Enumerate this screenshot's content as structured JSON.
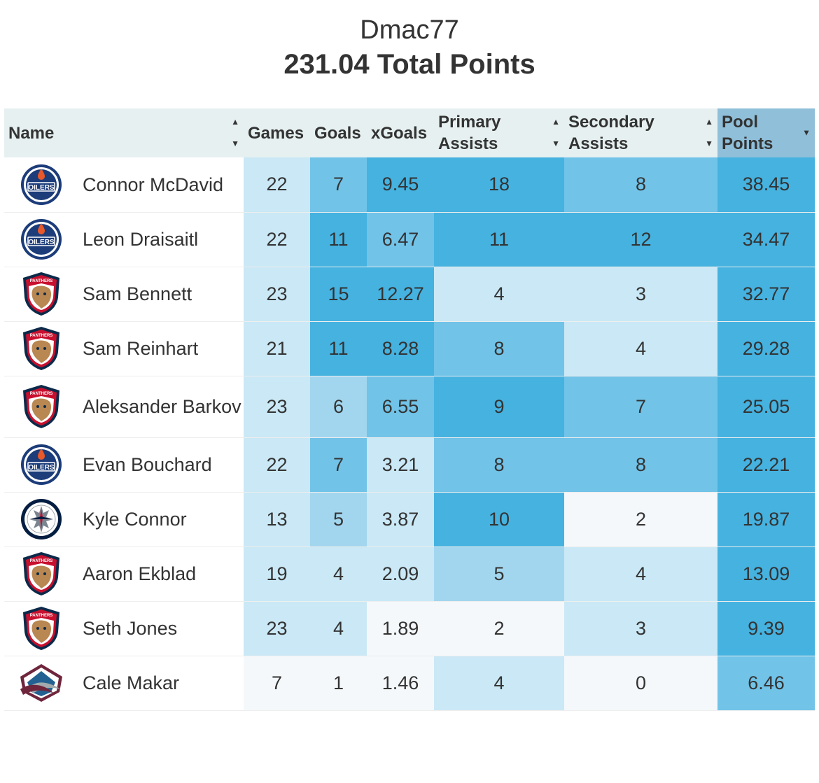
{
  "header": {
    "owner": "Dmac77",
    "total": "231.04 Total Points"
  },
  "columns": [
    "Name",
    "Games",
    "Goals",
    "xGoals",
    "Primary Assists",
    "Secondary Assists",
    "Pool Points"
  ],
  "colors": {
    "c0": "#f4f8fb",
    "c1": "#cae8f5",
    "c2": "#a2d6ee",
    "c3": "#71c3e8",
    "c4": "#45b2e0",
    "header": "#e6f0f0",
    "sorted_header": "#8fbfd9"
  },
  "rows": [
    {
      "team": "oilers",
      "name": "Connor McDavid",
      "games": "22",
      "goals": "7",
      "xgoals": "9.45",
      "pa": "18",
      "sa": "8",
      "pts": "38.45",
      "shade": [
        "c1",
        "c3",
        "c4",
        "c4",
        "c3",
        "c4"
      ]
    },
    {
      "team": "oilers",
      "name": "Leon Draisaitl",
      "games": "22",
      "goals": "11",
      "xgoals": "6.47",
      "pa": "11",
      "sa": "12",
      "pts": "34.47",
      "shade": [
        "c1",
        "c4",
        "c3",
        "c4",
        "c4",
        "c4"
      ]
    },
    {
      "team": "panthers",
      "name": "Sam Bennett",
      "games": "23",
      "goals": "15",
      "xgoals": "12.27",
      "pa": "4",
      "sa": "3",
      "pts": "32.77",
      "shade": [
        "c1",
        "c4",
        "c4",
        "c1",
        "c1",
        "c4"
      ]
    },
    {
      "team": "panthers",
      "name": "Sam Reinhart",
      "games": "21",
      "goals": "11",
      "xgoals": "8.28",
      "pa": "8",
      "sa": "4",
      "pts": "29.28",
      "shade": [
        "c1",
        "c4",
        "c4",
        "c3",
        "c1",
        "c4"
      ]
    },
    {
      "team": "panthers",
      "name": "Aleksander Barkov",
      "games": "23",
      "goals": "6",
      "xgoals": "6.55",
      "pa": "9",
      "sa": "7",
      "pts": "25.05",
      "shade": [
        "c1",
        "c2",
        "c3",
        "c4",
        "c3",
        "c4"
      ]
    },
    {
      "team": "oilers",
      "name": "Evan Bouchard",
      "games": "22",
      "goals": "7",
      "xgoals": "3.21",
      "pa": "8",
      "sa": "8",
      "pts": "22.21",
      "shade": [
        "c1",
        "c3",
        "c1",
        "c3",
        "c3",
        "c4"
      ]
    },
    {
      "team": "jets",
      "name": "Kyle Connor",
      "games": "13",
      "goals": "5",
      "xgoals": "3.87",
      "pa": "10",
      "sa": "2",
      "pts": "19.87",
      "shade": [
        "c1",
        "c2",
        "c1",
        "c4",
        "c0",
        "c4"
      ]
    },
    {
      "team": "panthers",
      "name": "Aaron Ekblad",
      "games": "19",
      "goals": "4",
      "xgoals": "2.09",
      "pa": "5",
      "sa": "4",
      "pts": "13.09",
      "shade": [
        "c1",
        "c1",
        "c1",
        "c2",
        "c1",
        "c4"
      ]
    },
    {
      "team": "panthers",
      "name": "Seth Jones",
      "games": "23",
      "goals": "4",
      "xgoals": "1.89",
      "pa": "2",
      "sa": "3",
      "pts": "9.39",
      "shade": [
        "c1",
        "c1",
        "c0",
        "c0",
        "c1",
        "c4"
      ]
    },
    {
      "team": "avalanche",
      "name": "Cale Makar",
      "games": "7",
      "goals": "1",
      "xgoals": "1.46",
      "pa": "4",
      "sa": "0",
      "pts": "6.46",
      "shade": [
        "c0",
        "c0",
        "c0",
        "c1",
        "c0",
        "c3"
      ]
    }
  ]
}
